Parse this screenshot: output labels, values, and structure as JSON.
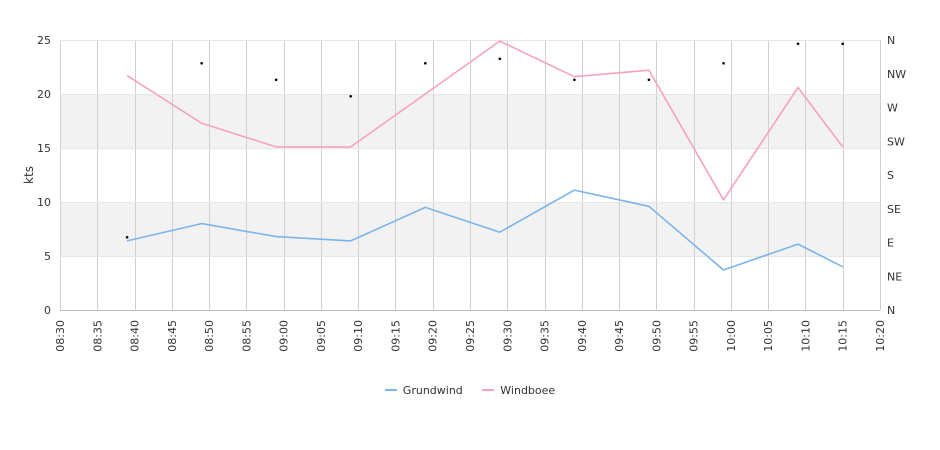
{
  "chart_data": {
    "type": "line",
    "ylabel": "kts",
    "ylim": [
      0,
      25
    ],
    "y_ticks": [
      0,
      5,
      10,
      15,
      20,
      25
    ],
    "y_tick_labels": [
      "0",
      "5",
      "10",
      "15",
      "20",
      "25"
    ],
    "x_ticks": [
      "08:30",
      "08:35",
      "08:40",
      "08:45",
      "08:50",
      "08:55",
      "09:00",
      "09:05",
      "09:10",
      "09:15",
      "09:20",
      "09:25",
      "09:30",
      "09:35",
      "09:40",
      "09:45",
      "09:50",
      "09:55",
      "10:00",
      "10:05",
      "10:10",
      "10:15",
      "10:20"
    ],
    "x_range": [
      "08:30",
      "10:20"
    ],
    "bands": [
      [
        5,
        10
      ],
      [
        15,
        20
      ]
    ],
    "right_axis": {
      "labels": [
        "N",
        "NE",
        "E",
        "SE",
        "S",
        "SW",
        "W",
        "NW",
        "N"
      ],
      "range_degrees": [
        0,
        360
      ]
    },
    "series": [
      {
        "name": "Grundwind",
        "color": "#7cb5ec",
        "x": [
          "08:39",
          "08:49",
          "08:59",
          "09:09",
          "09:19",
          "09:29",
          "09:39",
          "09:49",
          "09:59",
          "10:09",
          "10:15"
        ],
        "values": [
          6.4,
          8.0,
          6.8,
          6.4,
          9.5,
          7.2,
          11.1,
          9.6,
          3.7,
          6.1,
          4.0
        ]
      },
      {
        "name": "Windboee",
        "color": "#f7a1c4",
        "x": [
          "08:39",
          "08:49",
          "08:59",
          "09:09",
          "09:19",
          "09:29",
          "09:39",
          "09:49",
          "09:59",
          "10:09",
          "10:15"
        ],
        "values": [
          21.7,
          17.3,
          15.1,
          15.1,
          20.0,
          24.9,
          21.6,
          22.2,
          10.2,
          20.6,
          15.1
        ]
      }
    ],
    "direction_points": {
      "x": [
        "08:39",
        "08:49",
        "08:59",
        "09:09",
        "09:19",
        "09:29",
        "09:39",
        "09:49",
        "09:59",
        "10:09",
        "10:15"
      ],
      "degrees": [
        97,
        329,
        307,
        285,
        329,
        335,
        307,
        307,
        329,
        355,
        355
      ]
    },
    "legend": [
      "Grundwind",
      "Windboee"
    ],
    "legend_position": "bottom-center",
    "grid": true
  }
}
